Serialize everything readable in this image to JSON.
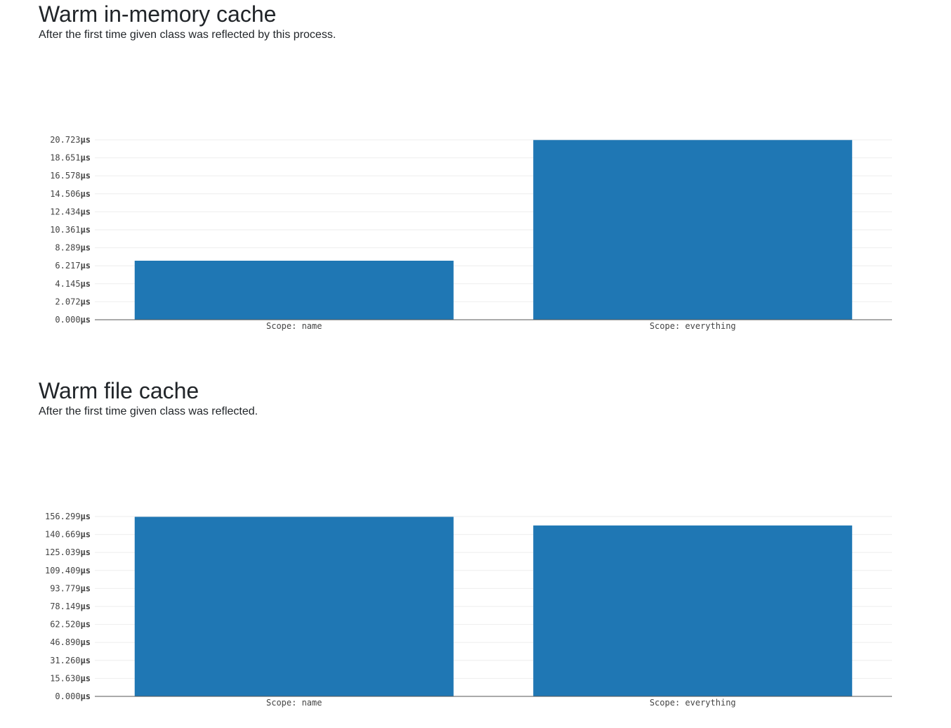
{
  "sections": [
    {
      "title": "Warm in-memory cache",
      "description": "After the first time given class was reflected by this process."
    },
    {
      "title": "Warm file cache",
      "description": "After the first time given class was reflected."
    }
  ],
  "chart_data": [
    {
      "type": "bar",
      "categories": [
        "Scope: name",
        "Scope: everything"
      ],
      "values": [
        6.8,
        20.7
      ],
      "unit": "μs",
      "yticks": [
        "0.000",
        "2.072",
        "4.145",
        "6.217",
        "8.289",
        "10.361",
        "12.434",
        "14.506",
        "16.578",
        "18.651",
        "20.723"
      ],
      "ylim": [
        0,
        20.723
      ],
      "color": "#1f77b4",
      "grid": true
    },
    {
      "type": "bar",
      "categories": [
        "Scope: name",
        "Scope: everything"
      ],
      "values": [
        156.0,
        148.5
      ],
      "unit": "μs",
      "yticks": [
        "0.000",
        "15.630",
        "31.260",
        "46.890",
        "62.520",
        "78.149",
        "93.779",
        "109.409",
        "125.039",
        "140.669",
        "156.299"
      ],
      "ylim": [
        0,
        156.299
      ],
      "color": "#1f77b4",
      "grid": true
    }
  ]
}
